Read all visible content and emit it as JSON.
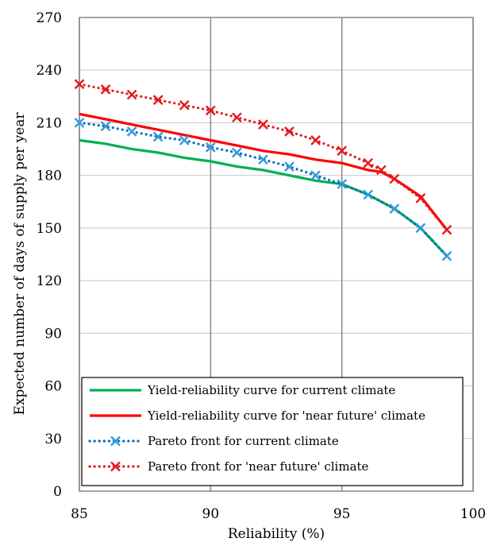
{
  "chart_data": {
    "type": "line",
    "title": "",
    "xlabel": "Reliability (%)",
    "ylabel": "Expected number of days of supply  per year",
    "xlim": [
      85,
      100
    ],
    "ylim": [
      0,
      270
    ],
    "x_ticks": [
      85,
      90,
      95,
      100
    ],
    "y_ticks": [
      0,
      30,
      60,
      90,
      120,
      150,
      180,
      210,
      240,
      270
    ],
    "grid": true,
    "legend_position": "bottom-right",
    "series": [
      {
        "name": "Yield-reliability curve for current climate",
        "style": "solid",
        "color": "#00b050",
        "markers": false,
        "x": [
          85,
          86,
          87,
          88,
          89,
          90,
          91,
          92,
          93,
          94,
          95,
          96,
          97,
          98,
          99
        ],
        "y": [
          200,
          198,
          195,
          193,
          190,
          188,
          185,
          183,
          180,
          177,
          175,
          169,
          161,
          150,
          134
        ]
      },
      {
        "name": "Yield-reliability curve for 'near future' climate",
        "style": "solid",
        "color": "#ff0000",
        "markers": false,
        "x": [
          85,
          86,
          87,
          88,
          89,
          90,
          91,
          92,
          93,
          94,
          95,
          96,
          96.5,
          97,
          98,
          99
        ],
        "y": [
          215,
          212,
          209,
          206,
          203,
          200,
          197,
          194,
          192,
          189,
          187,
          183,
          182,
          178,
          168,
          149
        ]
      },
      {
        "name": "Pareto front for current climate",
        "style": "dotted",
        "color": "#0070c0",
        "marker_color": "#3399dd",
        "markers": true,
        "x": [
          85,
          86,
          87,
          88,
          89,
          90,
          91,
          92,
          93,
          94,
          95,
          96,
          97,
          98,
          99
        ],
        "y": [
          210,
          208,
          205,
          202,
          200,
          196,
          193,
          189,
          185,
          180,
          175,
          169,
          161,
          150,
          134
        ]
      },
      {
        "name": "Pareto front for 'near future' climate",
        "style": "dotted",
        "color": "#e31a1c",
        "marker_color": "#e31a1c",
        "markers": true,
        "x": [
          85,
          86,
          87,
          88,
          89,
          90,
          91,
          92,
          93,
          94,
          95,
          96,
          96.5,
          97,
          98,
          99
        ],
        "y": [
          232,
          229,
          226,
          223,
          220,
          217,
          213,
          209,
          205,
          200,
          194,
          187,
          183,
          178,
          167,
          149
        ]
      }
    ]
  }
}
